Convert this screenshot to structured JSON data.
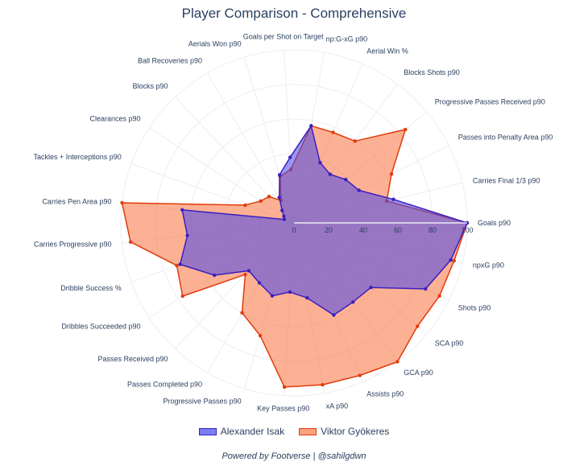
{
  "chart_data": {
    "type": "radar",
    "title": "Player Comparison - Comprehensive",
    "axes": [
      "Goals p90",
      "npxG p90",
      "Shots p90",
      "SCA p90",
      "GCA p90",
      "Assists p90",
      "xA p90",
      "Key Passes p90",
      "Progressive Passes p90",
      "Passes Completed p90",
      "Passes Received p90",
      "Dribbles Succeeded p90",
      "Dribble Success %",
      "Carries Progressive p90",
      "Carries Pen Area p90",
      "Tackles + Interceptions p90",
      "Clearances p90",
      "Blocks p90",
      "Ball Recoveries p90",
      "Aerials Won p90",
      "Goals per Shot on Target",
      "np:G-xG p90",
      "Aerial Win %",
      "Blocks Shots p90",
      "Progressive Passes Received p90",
      "Passes into Penalty Area p90",
      "Carries Final 1/3 p90"
    ],
    "radial_range": [
      0,
      100
    ],
    "radial_ticks": [
      "0",
      "20",
      "40",
      "60",
      "80",
      "100"
    ],
    "series": [
      {
        "name": "Alexander Isak",
        "color": "#3b1fbf",
        "fill": "rgba(70,70,235,0.55)",
        "values": [
          100,
          93,
          85,
          58,
          57,
          58,
          44,
          40,
          44,
          40,
          38,
          55,
          70,
          62,
          65,
          6,
          7,
          10,
          17,
          29,
          38,
          57,
          38,
          35,
          39,
          42,
          59
        ]
      },
      {
        "name": "Viktor Gyökeres",
        "color": "#e23b0c",
        "fill": "rgba(250,120,70,0.58)",
        "values": [
          100,
          95,
          94,
          93,
          100,
          96,
          95,
          95,
          68,
          60,
          41,
          77,
          72,
          95,
          100,
          30,
          23,
          21,
          15,
          28,
          31,
          57,
          57,
          59,
          84,
          63,
          55
        ]
      }
    ],
    "legend_position": "bottom-center",
    "grid": true
  },
  "legend": {
    "items": [
      {
        "label": "Alexander Isak",
        "color": "#3b1fbf",
        "fill": "#7a7ff2"
      },
      {
        "label": "Viktor Gyökeres",
        "color": "#e23b0c",
        "fill": "#f9a27c"
      }
    ]
  },
  "footer": {
    "text": "Powered by Footverse | @sahilgdwn"
  }
}
